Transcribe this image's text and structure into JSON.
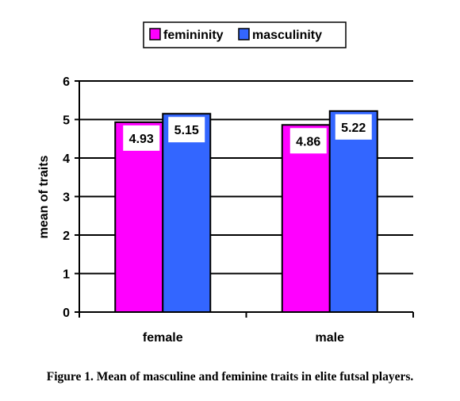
{
  "chart_data": {
    "type": "bar",
    "categories": [
      "female",
      "male"
    ],
    "series": [
      {
        "name": "femininity",
        "values": [
          4.93,
          4.86
        ],
        "color": "#ff00ff"
      },
      {
        "name": "masculinity",
        "values": [
          5.15,
          5.22
        ],
        "color": "#3366ff"
      }
    ],
    "ylabel": "mean of traits",
    "xlabel": "",
    "ylim": [
      0,
      6
    ],
    "yticks": [
      0,
      1,
      2,
      3,
      4,
      5,
      6
    ],
    "grid": true,
    "legend_position": "top-center",
    "data_labels": [
      "4.93",
      "4.86",
      "5.15",
      "5.22"
    ]
  },
  "caption": "Figure 1. Mean of masculine and feminine traits in elite futsal players."
}
